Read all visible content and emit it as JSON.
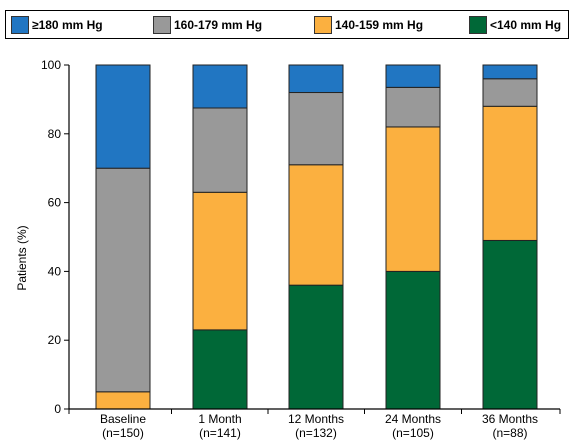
{
  "chart_data": {
    "type": "bar",
    "stacked": true,
    "categories": [
      "Baseline",
      "1 Month",
      "12 Months",
      "24 Months",
      "36 Months"
    ],
    "category_counts": [
      "(n=150)",
      "(n=141)",
      "(n=132)",
      "(n=105)",
      "(n=88)"
    ],
    "series": [
      {
        "name": "<140 mm Hg",
        "color": "#006837",
        "values": [
          0,
          23,
          36,
          40,
          49
        ]
      },
      {
        "name": "140-159 mm Hg",
        "color": "#FBB040",
        "values": [
          5,
          40,
          35,
          42,
          39
        ]
      },
      {
        "name": "160-179 mm Hg",
        "color": "#999999",
        "values": [
          65,
          24.5,
          21,
          11.5,
          8
        ]
      },
      {
        "name": "≥180 mm Hg",
        "color": "#2176C2",
        "values": [
          30,
          12.5,
          8,
          6.5,
          4
        ]
      }
    ],
    "ylabel": "Patients (%)",
    "ylim": [
      0,
      100
    ],
    "yticks": [
      0,
      20,
      40,
      60,
      80,
      100
    ],
    "legend_position": "top",
    "grid": false
  },
  "legend": [
    {
      "label": "≥180 mm Hg",
      "color": "#2176C2"
    },
    {
      "label": "160-179 mm Hg",
      "color": "#999999"
    },
    {
      "label": "140-159 mm Hg",
      "color": "#FBB040"
    },
    {
      "label": "<140 mm Hg",
      "color": "#006837"
    }
  ]
}
